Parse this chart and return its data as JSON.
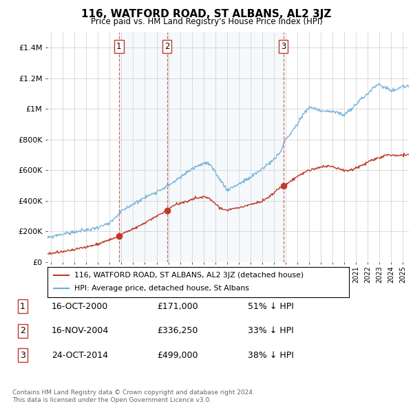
{
  "title": "116, WATFORD ROAD, ST ALBANS, AL2 3JZ",
  "subtitle": "Price paid vs. HM Land Registry's House Price Index (HPI)",
  "ylim": [
    0,
    1500000
  ],
  "yticks": [
    0,
    200000,
    400000,
    600000,
    800000,
    1000000,
    1200000,
    1400000
  ],
  "ytick_labels": [
    "£0",
    "£200K",
    "£400K",
    "£600K",
    "£800K",
    "£1M",
    "£1.2M",
    "£1.4M"
  ],
  "xlim_start": 1994.7,
  "xlim_end": 2025.5,
  "vline_years": [
    2000.79,
    2004.88,
    2014.81
  ],
  "transactions": [
    {
      "year": 2000.79,
      "price": 171000,
      "label": "1"
    },
    {
      "year": 2004.88,
      "price": 336250,
      "label": "2"
    },
    {
      "year": 2014.81,
      "price": 499000,
      "label": "3"
    }
  ],
  "table_rows": [
    {
      "num": "1",
      "date": "16-OCT-2000",
      "price": "£171,000",
      "change": "51% ↓ HPI"
    },
    {
      "num": "2",
      "date": "16-NOV-2004",
      "price": "£336,250",
      "change": "33% ↓ HPI"
    },
    {
      "num": "3",
      "date": "24-OCT-2014",
      "price": "£499,000",
      "change": "38% ↓ HPI"
    }
  ],
  "footer": "Contains HM Land Registry data © Crown copyright and database right 2024.\nThis data is licensed under the Open Government Licence v3.0.",
  "legend_entries": [
    "116, WATFORD ROAD, ST ALBANS, AL2 3JZ (detached house)",
    "HPI: Average price, detached house, St Albans"
  ],
  "hpi_color": "#6baed6",
  "hpi_fill_color": "#d6eaf8",
  "price_color": "#c0392b",
  "vline_color": "#c0392b",
  "background_color": "#ffffff",
  "grid_color": "#cccccc",
  "shade_color": "#daeaf5"
}
